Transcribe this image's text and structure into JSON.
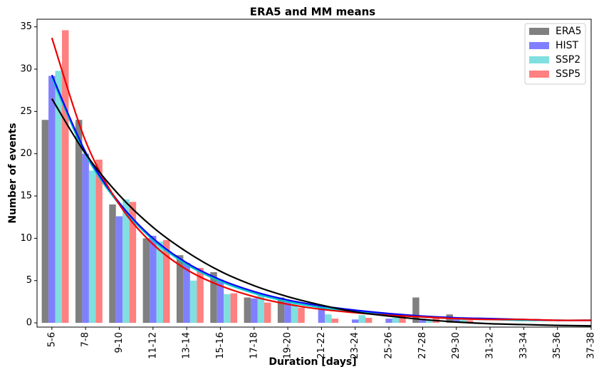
{
  "chart_data": {
    "type": "bar",
    "title": "ERA5 and MM means",
    "x_label": "Duration [days]",
    "y_label": "Number of events",
    "categories": [
      "5-6",
      "7-8",
      "9-10",
      "11-12",
      "13-14",
      "15-16",
      "17-18",
      "19-20",
      "21-22",
      "23-24",
      "25-26",
      "27-28",
      "29-30",
      "31-32",
      "33-34",
      "35-36",
      "37-38"
    ],
    "series": [
      {
        "name": "ERA5",
        "color": "#808080",
        "values": [
          24,
          24,
          14,
          10,
          8,
          6,
          3,
          3,
          0,
          0,
          0,
          3,
          1,
          0,
          0,
          0,
          0
        ]
      },
      {
        "name": "HIST",
        "color": "#8080ff",
        "values": [
          29.2,
          20,
          12.6,
          10.3,
          7.1,
          5.1,
          2.9,
          2.6,
          2.1,
          0.4,
          0.5,
          0.5,
          0.6,
          0,
          0,
          0,
          0
        ]
      },
      {
        "name": "SSP2",
        "color": "#80dfdf",
        "values": [
          29.8,
          18,
          14.6,
          9.6,
          5.0,
          3.4,
          3.4,
          2.6,
          1.0,
          0.9,
          0.6,
          0.3,
          0.6,
          0,
          0,
          0,
          0
        ]
      },
      {
        "name": "SSP5",
        "color": "#ff8080",
        "values": [
          34.6,
          19.3,
          14.3,
          9.8,
          6.5,
          3.5,
          2.4,
          1.8,
          0.5,
          0.6,
          1.0,
          0.7,
          0.3,
          0,
          0,
          0,
          0
        ]
      }
    ],
    "fits": [
      {
        "color": "#00c8c8",
        "values": [
          29.0,
          19.9,
          14.0,
          9.8,
          6.9,
          4.9,
          3.5,
          2.5,
          1.8,
          1.3,
          1.0,
          0.7,
          0.5,
          0.4,
          0.3,
          0.3,
          0.3
        ]
      },
      {
        "color": "#0000ff",
        "values": [
          29.3,
          20.2,
          14.2,
          10.0,
          7.1,
          5.1,
          3.7,
          2.7,
          2.0,
          1.5,
          1.1,
          0.8,
          0.6,
          0.5,
          0.4,
          0.3,
          0.3
        ]
      },
      {
        "color": "#ee0000",
        "values": [
          33.7,
          21.5,
          14.0,
          9.3,
          6.3,
          4.4,
          3.1,
          2.2,
          1.6,
          1.2,
          0.9,
          0.7,
          0.5,
          0.4,
          0.4,
          0.3,
          0.3
        ]
      },
      {
        "color": "#000000",
        "values": [
          26.5,
          20,
          15.1,
          11.3,
          8.4,
          6.1,
          4.4,
          3.1,
          2.1,
          1.3,
          0.8,
          0.4,
          0.1,
          -0.1,
          -0.2,
          -0.3,
          -0.35
        ]
      }
    ],
    "ylim": [
      -0.5,
      35.9
    ],
    "yticks": [
      0,
      5,
      10,
      15,
      20,
      25,
      30,
      35
    ],
    "legend": "upper right"
  }
}
